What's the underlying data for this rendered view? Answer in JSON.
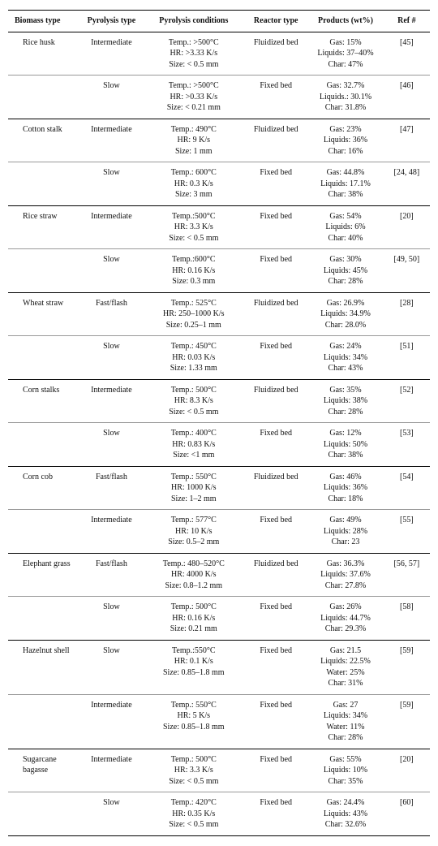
{
  "columns": [
    "Biomass type",
    "Pyrolysis type",
    "Pyrolysis conditions",
    "Reactor type",
    "Products (wt%)",
    "Ref #"
  ],
  "groups": [
    {
      "biomass": "Rice husk",
      "rows": [
        {
          "ptype": "Intermediate",
          "cond": [
            "Temp.: >500°C",
            "HR: >3.33 K/s",
            "Size: < 0.5 mm"
          ],
          "reactor": "Fluidized bed",
          "prod": [
            "Gas: 15%",
            "Liquids: 37–40%",
            "Char: 47%"
          ],
          "ref": "[45]"
        },
        {
          "ptype": "Slow",
          "cond": [
            "Temp.: >500°C",
            "HR: >0.33 K/s",
            "Size: < 0.21 mm"
          ],
          "reactor": "Fixed bed",
          "prod": [
            "Gas: 32.7%",
            "Liquids.: 30.1%",
            "Char: 31.8%"
          ],
          "ref": "[46]"
        }
      ]
    },
    {
      "biomass": "Cotton stalk",
      "rows": [
        {
          "ptype": "Intermediate",
          "cond": [
            "Temp.: 490°C",
            "HR: 9 K/s",
            "Size: 1 mm"
          ],
          "reactor": "Fluidized bed",
          "prod": [
            "Gas: 23%",
            "Liquids: 36%",
            "Char: 16%"
          ],
          "ref": "[47]"
        },
        {
          "ptype": "Slow",
          "cond": [
            "Temp.: 600°C",
            "HR: 0.3 K/s",
            "Size: 3 mm"
          ],
          "reactor": "Fixed bed",
          "prod": [
            "Gas: 44.8%",
            "Liquids: 17.1%",
            "Char: 38%"
          ],
          "ref": "[24, 48]"
        }
      ]
    },
    {
      "biomass": "Rice straw",
      "rows": [
        {
          "ptype": "Intermediate",
          "cond": [
            "Temp.:500°C",
            "HR: 3.3 K/s",
            "Size: < 0.5 mm"
          ],
          "reactor": "Fixed bed",
          "prod": [
            "Gas: 54%",
            "Liquids: 6%",
            "Char: 40%"
          ],
          "ref": "[20]"
        },
        {
          "ptype": "Slow",
          "cond": [
            "Temp.:600°C",
            "HR: 0.16 K/s",
            "Size: 0.3 mm"
          ],
          "reactor": "Fixed bed",
          "prod": [
            "Gas: 30%",
            "Liquids: 45%",
            "Char: 28%"
          ],
          "ref": "[49, 50]"
        }
      ]
    },
    {
      "biomass": "Wheat straw",
      "rows": [
        {
          "ptype": "Fast/flash",
          "cond": [
            "Temp.: 525°C",
            "HR: 250–1000 K/s",
            "Size: 0.25–1 mm"
          ],
          "reactor": "Fluidized bed",
          "prod": [
            "Gas: 26.9%",
            "Liquids: 34.9%",
            "Char: 28.0%"
          ],
          "ref": "[28]"
        },
        {
          "ptype": "Slow",
          "cond": [
            "Temp.: 450°C",
            "HR: 0.03 K/s",
            "Size: 1.33 mm"
          ],
          "reactor": "Fixed bed",
          "prod": [
            "Gas: 24%",
            "Liquids: 34%",
            "Char: 43%"
          ],
          "ref": "[51]"
        }
      ]
    },
    {
      "biomass": "Corn stalks",
      "rows": [
        {
          "ptype": "Intermediate",
          "cond": [
            "Temp.: 500°C",
            "HR: 8.3 K/s",
            "Size: < 0.5 mm"
          ],
          "reactor": "Fluidized bed",
          "prod": [
            "Gas: 35%",
            "Liquids: 38%",
            "Char: 28%"
          ],
          "ref": "[52]"
        },
        {
          "ptype": "Slow",
          "cond": [
            "Temp.: 400°C",
            "HR: 0.83 K/s",
            "Size: <1 mm"
          ],
          "reactor": "Fixed bed",
          "prod": [
            "Gas: 12%",
            "Liquids: 50%",
            "Char: 38%"
          ],
          "ref": "[53]"
        }
      ]
    },
    {
      "biomass": "Corn cob",
      "rows": [
        {
          "ptype": "Fast/flash",
          "cond": [
            "Temp.: 550°C",
            "HR: 1000 K/s",
            "Size: 1–2 mm"
          ],
          "reactor": "Fluidized bed",
          "prod": [
            "Gas: 46%",
            "Liquids: 36%",
            "Char: 18%"
          ],
          "ref": "[54]"
        },
        {
          "ptype": "Intermediate",
          "cond": [
            "Temp.: 577°C",
            "HR: 10 K/s",
            "Size: 0.5–2 mm"
          ],
          "reactor": "Fixed bed",
          "prod": [
            "Gas: 49%",
            "Liquids: 28%",
            "Char: 23"
          ],
          "ref": "[55]"
        }
      ]
    },
    {
      "biomass": "Elephant grass",
      "rows": [
        {
          "ptype": "Fast/flash",
          "cond": [
            "Temp.: 480–520°C",
            "HR: 4000 K/s",
            "Size: 0.8–1.2 mm"
          ],
          "reactor": "Fluidized bed",
          "prod": [
            "Gas: 36.3%",
            "Liquids: 37.6%",
            "Char: 27.8%"
          ],
          "ref": "[56, 57]"
        },
        {
          "ptype": "Slow",
          "cond": [
            "Temp.: 500°C",
            "HR: 0.16 K/s",
            "Size: 0.21 mm"
          ],
          "reactor": "Fixed bed",
          "prod": [
            "Gas: 26%",
            "Liquids: 44.7%",
            "Char: 29.3%"
          ],
          "ref": "[58]"
        }
      ]
    },
    {
      "biomass": "Hazelnut shell",
      "rows": [
        {
          "ptype": "Slow",
          "cond": [
            "Temp.:550°C",
            "HR: 0.1 K/s",
            "Size: 0.85–1.8 mm"
          ],
          "reactor": "Fixed bed",
          "prod": [
            "Gas: 21.5",
            "Liquids: 22.5%",
            "Water: 25%",
            "Char: 31%"
          ],
          "ref": "[59]"
        },
        {
          "ptype": "Intermediate",
          "cond": [
            "Temp.: 550°C",
            "HR: 5 K/s",
            "Size: 0.85–1.8 mm"
          ],
          "reactor": "Fixed bed",
          "prod": [
            "Gas: 27",
            "Liquids: 34%",
            "Water: 11%",
            "Char: 28%"
          ],
          "ref": "[59]"
        }
      ]
    },
    {
      "biomass": "Sugarcane bagasse",
      "rows": [
        {
          "ptype": "Intermediate",
          "cond": [
            "Temp.: 500°C",
            "HR: 3.3 K/s",
            "Size: < 0.5 mm"
          ],
          "reactor": "Fixed bed",
          "prod": [
            "Gas: 55%",
            "Liquids: 10%",
            "Char: 35%"
          ],
          "ref": "[20]"
        },
        {
          "ptype": "Slow",
          "cond": [
            "Temp.: 420°C",
            "HR: 0.35 K/s",
            "Size: < 0.5 mm"
          ],
          "reactor": "Fixed bed",
          "prod": [
            "Gas: 24.4%",
            "Liquids: 43%",
            "Char: 32.6%"
          ],
          "ref": "[60]"
        }
      ]
    }
  ],
  "colwidths": [
    "17%",
    "15%",
    "24%",
    "15%",
    "18%",
    "11%"
  ]
}
